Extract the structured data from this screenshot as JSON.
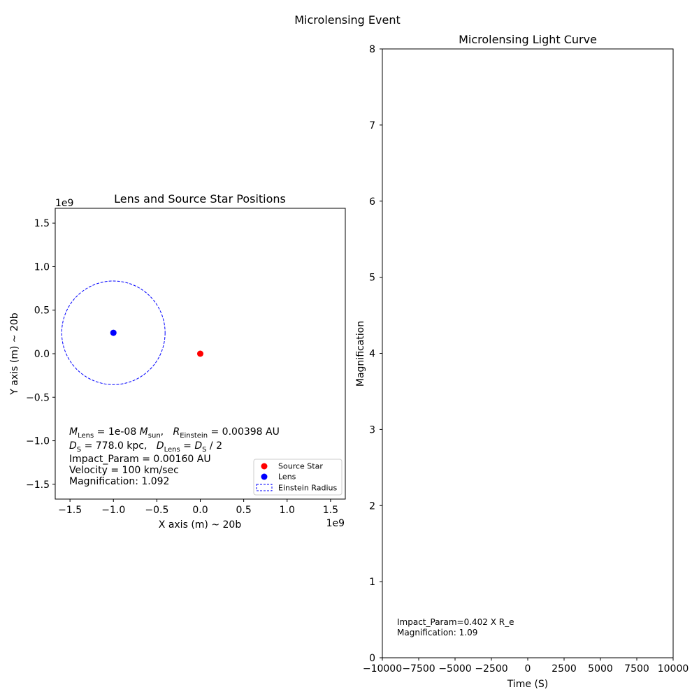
{
  "figure": {
    "suptitle": "Microlensing Event"
  },
  "chart_data": [
    {
      "type": "scatter",
      "title": "Lens and Source Star Positions",
      "xlabel": "X axis (m) ~ 20b",
      "ylabel": "Y axis (m) ~ 20b",
      "x_offset_label": "1e9",
      "y_offset_label": "1e9",
      "xlim": [
        -1.67,
        1.67
      ],
      "ylim": [
        -1.67,
        1.67
      ],
      "xticks": [
        -1.5,
        -1.0,
        -0.5,
        0.0,
        0.5,
        1.0,
        1.5
      ],
      "xtick_labels": [
        "−1.5",
        "−1.0",
        "−0.5",
        "0.0",
        "0.5",
        "1.0",
        "1.5"
      ],
      "yticks": [
        -1.5,
        -1.0,
        -0.5,
        0.0,
        0.5,
        1.0,
        1.5
      ],
      "ytick_labels": [
        "−1.5",
        "−1.0",
        "−0.5",
        "0.0",
        "0.5",
        "1.0",
        "1.5"
      ],
      "scale_note": "axis values × 1e9 m",
      "grid": false,
      "series": [
        {
          "name": "Source Star",
          "marker": "circle",
          "color": "#ff0000",
          "points": [
            [
              0.0,
              0.0
            ]
          ]
        },
        {
          "name": "Lens",
          "marker": "circle",
          "color": "#0000ff",
          "points": [
            [
              -1.0,
              0.24
            ]
          ]
        }
      ],
      "einstein_circle": {
        "name": "Einstein Radius",
        "center": [
          -1.0,
          0.24
        ],
        "radius": 0.595,
        "color": "#0000ff",
        "linestyle": "dashed"
      },
      "legend": {
        "position": "lower right",
        "entries": [
          {
            "label": "Source Star",
            "kind": "marker",
            "color": "#ff0000"
          },
          {
            "label": "Lens",
            "kind": "marker",
            "color": "#0000ff"
          },
          {
            "label": "Einstein Radius",
            "kind": "dashed-box",
            "color": "#0000ff"
          }
        ]
      },
      "info": {
        "line1": {
          "m": "M",
          "m_sub": "Lens",
          "m_eq": " = 1e-08 ",
          "msun": "M",
          "msun_sub": "sun",
          "sep": ",   ",
          "r": "R",
          "r_sub": "Einstein",
          "r_eq": " = 0.00398 AU"
        },
        "line2": {
          "ds": "D",
          "ds_sub": "S",
          "ds_eq": " = 778.0 kpc,   ",
          "dl": "D",
          "dl_sub": "Lens",
          "dl_eq": " = ",
          "ds2": "D",
          "ds2_sub": "S",
          "tail": " / 2"
        },
        "line3": "Impact_Param = 0.00160 AU",
        "line4": "Velocity = 100 km/sec",
        "line5": "Magnification: 1.092"
      }
    },
    {
      "type": "line",
      "title": "Microlensing Light Curve",
      "xlabel": "Time (S)",
      "ylabel": "Magnification",
      "xlim": [
        -10000,
        10000
      ],
      "ylim": [
        0,
        8
      ],
      "xticks": [
        -10000,
        -7500,
        -5000,
        -2500,
        0,
        2500,
        5000,
        7500,
        10000
      ],
      "xtick_labels": [
        "−10000",
        "−7500",
        "−5000",
        "−2500",
        "0",
        "2500",
        "5000",
        "7500",
        "10000"
      ],
      "yticks": [
        0,
        1,
        2,
        3,
        4,
        5,
        6,
        7,
        8
      ],
      "ytick_labels": [
        "0",
        "1",
        "2",
        "3",
        "4",
        "5",
        "6",
        "7",
        "8"
      ],
      "grid": false,
      "series": [],
      "annotation": {
        "line1": "Impact_Param=0.402 X R_e",
        "line2": "Magnification: 1.09"
      }
    }
  ]
}
